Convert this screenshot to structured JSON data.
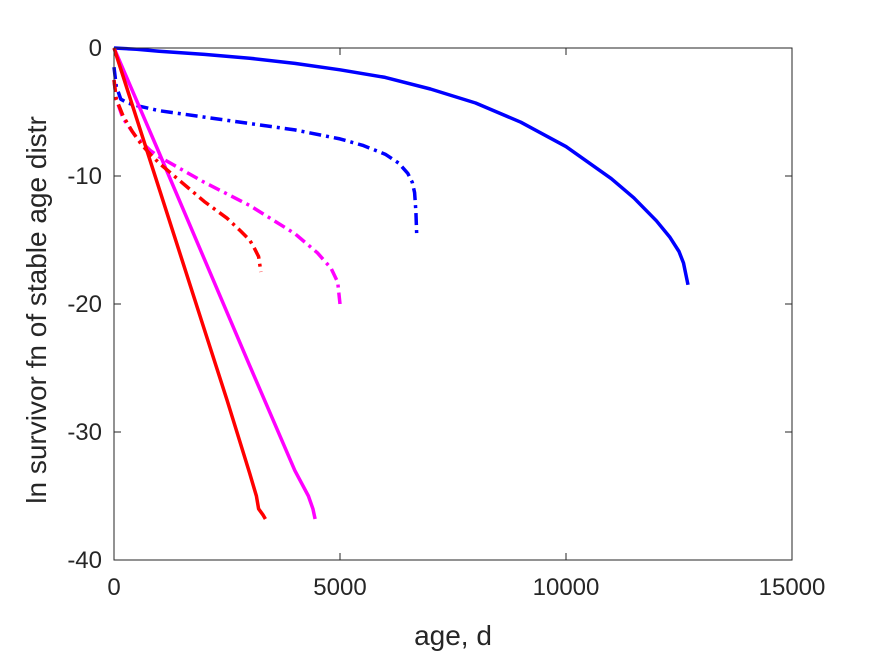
{
  "chart_data": {
    "type": "line",
    "title": "",
    "xlabel": "age, d",
    "ylabel": "ln survivor fn of stable age distr",
    "xlim": [
      0,
      15000
    ],
    "ylim": [
      -40,
      0
    ],
    "xticks": [
      0,
      5000,
      10000,
      15000
    ],
    "yticks": [
      0,
      -10,
      -20,
      -30,
      -40
    ],
    "xtick_labels": [
      "0",
      "5000",
      "10000",
      "15000"
    ],
    "ytick_labels": [
      "0",
      "-10",
      "-20",
      "-30",
      "-40"
    ],
    "grid": false,
    "legend": "none",
    "series": [
      {
        "color": "#0000ff",
        "style": "solid",
        "x": [
          0,
          500,
          1000,
          2000,
          3000,
          4000,
          5000,
          6000,
          7000,
          8000,
          9000,
          10000,
          11000,
          11500,
          12000,
          12300,
          12500,
          12600,
          12700
        ],
        "y": [
          0,
          -0.1,
          -0.25,
          -0.5,
          -0.8,
          -1.2,
          -1.7,
          -2.3,
          -3.2,
          -4.3,
          -5.8,
          -7.7,
          -10.2,
          -11.7,
          -13.5,
          -14.8,
          -15.9,
          -16.8,
          -18.5
        ]
      },
      {
        "color": "#0000ff",
        "style": "dashdot",
        "x": [
          0,
          50,
          150,
          300,
          500,
          1000,
          2000,
          3000,
          4000,
          5000,
          5500,
          6000,
          6300,
          6500,
          6600,
          6650,
          6680,
          6700
        ],
        "y": [
          -1.5,
          -3.0,
          -4.0,
          -4.3,
          -4.5,
          -4.9,
          -5.4,
          -5.9,
          -6.4,
          -7.1,
          -7.6,
          -8.3,
          -9.0,
          -9.8,
          -10.5,
          -11.3,
          -12.8,
          -14.8
        ]
      },
      {
        "color": "#ff00ff",
        "style": "solid",
        "x": [
          0,
          1000,
          2000,
          3000,
          4000,
          4300,
          4400,
          4450
        ],
        "y": [
          0,
          -8.2,
          -16.5,
          -24.8,
          -33.0,
          -35.0,
          -36.0,
          -36.8
        ]
      },
      {
        "color": "#ff00ff",
        "style": "dashdot",
        "x": [
          0,
          50,
          200,
          500,
          800,
          1000,
          1500,
          2000,
          3000,
          4000,
          4500,
          4800,
          4950,
          5000
        ],
        "y": [
          -2.5,
          -4.0,
          -5.5,
          -7.0,
          -8.0,
          -8.5,
          -9.5,
          -10.5,
          -12.3,
          -14.5,
          -16.0,
          -17.2,
          -18.3,
          -20.0
        ]
      },
      {
        "color": "#ff0000",
        "style": "solid",
        "x": [
          0,
          500,
          1000,
          1500,
          2000,
          2500,
          3000,
          3150,
          3200,
          3300,
          3350
        ],
        "y": [
          0,
          -5.5,
          -11.0,
          -16.5,
          -22.0,
          -27.5,
          -33.2,
          -35.0,
          -36.0,
          -36.5,
          -36.8
        ]
      },
      {
        "color": "#ff0000",
        "style": "dashdot",
        "x": [
          0,
          50,
          200,
          400,
          600,
          800,
          1000,
          1500,
          2000,
          2500,
          2800,
          3000,
          3100,
          3200,
          3250
        ],
        "y": [
          -2.5,
          -4.0,
          -5.3,
          -6.5,
          -7.5,
          -8.3,
          -9.0,
          -10.5,
          -12.0,
          -13.3,
          -14.3,
          -15.0,
          -15.6,
          -16.3,
          -17.5
        ]
      }
    ]
  }
}
